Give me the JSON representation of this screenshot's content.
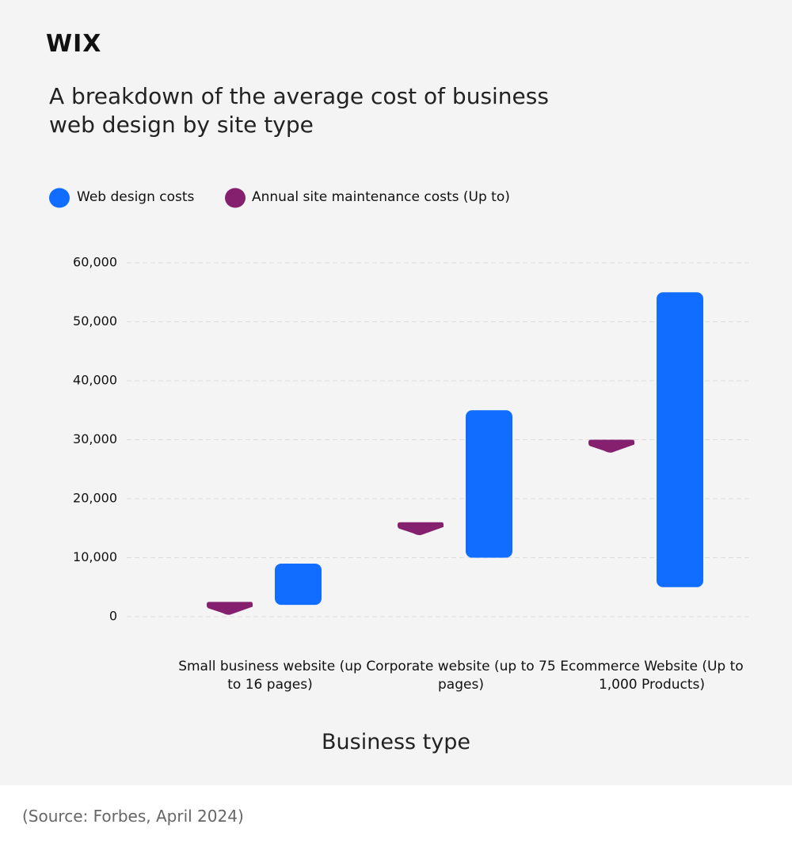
{
  "brand": "WIX",
  "chart_data": {
    "type": "range-bar",
    "title": "A breakdown of the average cost of business web design by site type",
    "x_label": "Business type",
    "categories": [
      "Small business website (up to 16 pages)",
      "Corporate website (up to 75 pages)",
      "Ecommerce Website (Up to 1,000 Products)"
    ],
    "series": [
      {
        "name": "Web design costs",
        "color": "#116dff",
        "low": [
          2000,
          10000,
          5000
        ],
        "high": [
          9000,
          35000,
          55000
        ]
      },
      {
        "name": "Annual site maintenance costs (Up to)",
        "color": "#85206f",
        "values": [
          2500,
          16000,
          30000
        ]
      }
    ],
    "ylim": [
      0,
      60000
    ],
    "yticks": [
      0,
      {
        "value": 10000,
        "label": "10,000"
      },
      {
        "value": 20000,
        "label": "20,000"
      },
      {
        "value": 30000,
        "label": "30,000"
      },
      {
        "value": 40000,
        "label": "40,000"
      },
      {
        "value": 50000,
        "label": "50,000"
      },
      {
        "value": 60000,
        "label": "60,000"
      }
    ],
    "grid": true
  },
  "source": "(Source: Forbes, April 2024)"
}
